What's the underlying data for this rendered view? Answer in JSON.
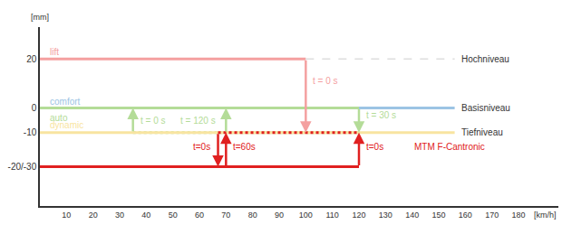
{
  "chart_data": {
    "type": "line",
    "xlabel": "[km/h]",
    "ylabel": "[mm]",
    "xlim": [
      0,
      195
    ],
    "ylim": [
      -40,
      33
    ],
    "xticks": [
      10,
      20,
      30,
      40,
      50,
      60,
      70,
      80,
      90,
      100,
      110,
      120,
      130,
      140,
      150,
      160,
      170,
      180
    ],
    "yticks": [
      20,
      0,
      -10,
      {
        "value": -24,
        "label": "-20/-30"
      }
    ],
    "grid": false,
    "tick_labels": true,
    "series": [
      {
        "name": "lift",
        "color": "#f4a0a0",
        "label": {
          "x": 3,
          "y": 23
        },
        "segments": [
          {
            "x": [
              0,
              100
            ],
            "values": [
              20,
              20
            ],
            "line_style": "solid"
          },
          {
            "x": [
              100,
              156
            ],
            "values": [
              20,
              20
            ],
            "line_style": "dashed",
            "color": "#dddddd"
          }
        ]
      },
      {
        "name": "comfort",
        "color": "#9cc4e4",
        "label": {
          "x": 3,
          "y": 2.5
        },
        "segments": [
          {
            "x": [
              0,
              156
            ],
            "values": [
              0,
              0
            ],
            "line_style": "solid"
          }
        ]
      },
      {
        "name": "auto",
        "color": "#b4dc98",
        "label": {
          "x": 3,
          "y": -4
        },
        "segments": [
          {
            "x": [
              0,
              120
            ],
            "values": [
              0,
              0
            ],
            "line_style": "solid"
          },
          {
            "x": [
              35,
              120
            ],
            "values": [
              -10,
              -10
            ],
            "line_style": "dotted"
          }
        ]
      },
      {
        "name": "dynamic",
        "color": "#f8e4a0",
        "label": {
          "x": 3,
          "y": -7
        },
        "segments": [
          {
            "x": [
              0,
              156
            ],
            "values": [
              -10,
              -10
            ],
            "line_style": "solid"
          }
        ]
      },
      {
        "name": "MTM F-Cantronic",
        "color": "#e02020",
        "label": {
          "x": 140,
          "y": -16
        },
        "segments": [
          {
            "x": [
              0,
              120
            ],
            "values": [
              -24,
              -24
            ],
            "line_style": "solid"
          },
          {
            "x": [
              67,
              120
            ],
            "values": [
              -10,
              -10
            ],
            "line_style": "dotted"
          }
        ]
      }
    ],
    "level_labels": [
      {
        "y": 20,
        "text": "Hochniveau",
        "x": 158
      },
      {
        "y": 0,
        "text": "Basisniveau",
        "x": 158
      },
      {
        "y": -10,
        "text": "Tiefniveau",
        "x": 158
      }
    ],
    "arrows": [
      {
        "x": 100,
        "from": 20,
        "to": -10,
        "color": "#f4a0a0",
        "text": "t = 0 s",
        "text_x": 102,
        "text_y": 11
      },
      {
        "x": 120,
        "from": 0,
        "to": -10,
        "color": "#b4dc98",
        "text": "t = 30 s",
        "text_x": 122,
        "text_y": -3
      },
      {
        "x": 35,
        "from": -10,
        "to": 0,
        "color": "#b4dc98",
        "text": "t = 0 s",
        "text_x": 37,
        "text_y": -5
      },
      {
        "x": 70,
        "from": -10,
        "to": 0,
        "color": "#b4dc98",
        "text": "t = 120 s",
        "text_x": 52,
        "text_y": -5
      },
      {
        "x": 67,
        "from": -10,
        "to": -24,
        "color": "#e02020",
        "text": "t=0s",
        "text_x": 57,
        "text_y": -16
      },
      {
        "x": 70,
        "from": -24,
        "to": -10,
        "color": "#e02020",
        "text": "t=60s",
        "text_x": 72,
        "text_y": -16
      },
      {
        "x": 120,
        "from": -24,
        "to": -10,
        "color": "#e02020",
        "text": "t=0s",
        "text_x": 122,
        "text_y": -16
      }
    ]
  }
}
